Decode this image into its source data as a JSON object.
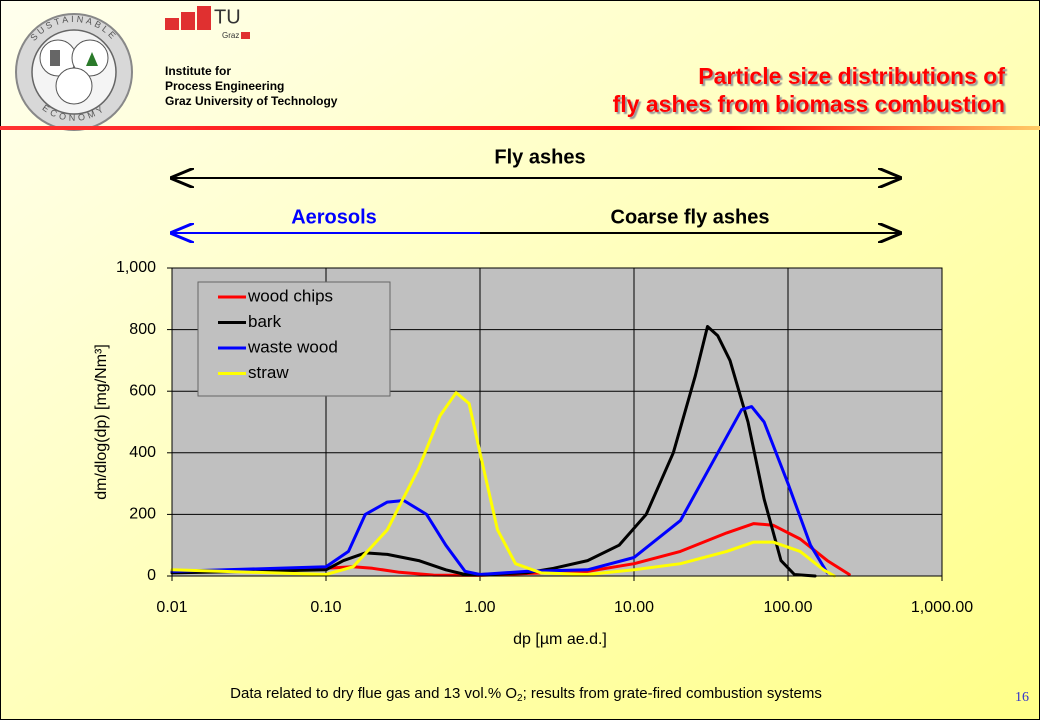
{
  "header": {
    "institute": [
      "Institute for",
      "Process Engineering",
      "Graz University of Technology"
    ],
    "logo_tu": "TU",
    "logo_graz": "Graz",
    "logo_ring_top": "SUSTAINABLE",
    "logo_ring_bottom": "ECONOMY",
    "title": [
      "Particle size distributions of",
      "fly ashes from biomass combustion"
    ]
  },
  "chart_data": {
    "type": "line",
    "annotations": [
      "Fly ashes",
      "Aerosols",
      "Coarse fly ashes"
    ],
    "xlabel": "dp [µm ae.d.]",
    "ylabel": "dm/dlog(dp) [mg/Nm³]",
    "xscale": "log",
    "xlim": [
      0.01,
      1000
    ],
    "xticks": [
      0.01,
      {
        "value": 0.1,
        "label": "0.10"
      },
      {
        "value": 1,
        "label": "1.00"
      },
      {
        "value": 10,
        "label": "10.00"
      },
      {
        "value": 100,
        "label": "100.00"
      },
      {
        "value": 1000,
        "label": "1,000.00"
      }
    ],
    "ylim": [
      0,
      1000
    ],
    "yticks": [
      0,
      200,
      400,
      600,
      800,
      {
        "value": 1000,
        "label": "1,000"
      }
    ],
    "grid": true,
    "legend": "upper left",
    "series": [
      {
        "name": "wood chips",
        "color": "#ff0000",
        "x": [
          0.01,
          0.05,
          0.1,
          0.15,
          0.2,
          0.3,
          0.5,
          1,
          2,
          5,
          10,
          20,
          40,
          60,
          80,
          120,
          180,
          250
        ],
        "values": [
          15,
          15,
          25,
          30,
          25,
          12,
          3,
          2,
          8,
          15,
          40,
          80,
          140,
          170,
          165,
          120,
          50,
          5
        ]
      },
      {
        "name": "bark",
        "color": "#000000",
        "x": [
          0.01,
          0.1,
          0.13,
          0.18,
          0.25,
          0.4,
          0.6,
          0.8,
          1,
          2,
          3,
          5,
          8,
          12,
          18,
          25,
          30,
          35,
          42,
          55,
          70,
          90,
          110,
          150
        ],
        "values": [
          10,
          20,
          50,
          75,
          70,
          50,
          20,
          5,
          5,
          10,
          25,
          50,
          100,
          200,
          400,
          650,
          810,
          780,
          700,
          500,
          250,
          50,
          5,
          0
        ]
      },
      {
        "name": "waste wood",
        "color": "#0000ff",
        "x": [
          0.01,
          0.1,
          0.14,
          0.18,
          0.25,
          0.32,
          0.45,
          0.6,
          0.8,
          1,
          2,
          5,
          10,
          20,
          35,
          50,
          58,
          70,
          100,
          140,
          180
        ],
        "values": [
          15,
          30,
          80,
          200,
          240,
          245,
          200,
          100,
          15,
          5,
          15,
          20,
          60,
          180,
          400,
          540,
          550,
          500,
          300,
          100,
          10
        ]
      },
      {
        "name": "straw",
        "color": "#ffff00",
        "x": [
          0.01,
          0.1,
          0.15,
          0.25,
          0.4,
          0.55,
          0.7,
          0.85,
          1,
          1.3,
          1.7,
          2.5,
          5,
          10,
          20,
          40,
          60,
          80,
          120,
          170,
          200
        ],
        "values": [
          20,
          5,
          30,
          150,
          350,
          520,
          595,
          560,
          400,
          150,
          40,
          10,
          5,
          20,
          40,
          80,
          110,
          110,
          80,
          20,
          0
        ]
      }
    ]
  },
  "footnote": [
    "Data related to dry flue gas and 13 vol.% O",
    "2",
    "; results from grate-fired combustion systems"
  ],
  "page_number": "16"
}
